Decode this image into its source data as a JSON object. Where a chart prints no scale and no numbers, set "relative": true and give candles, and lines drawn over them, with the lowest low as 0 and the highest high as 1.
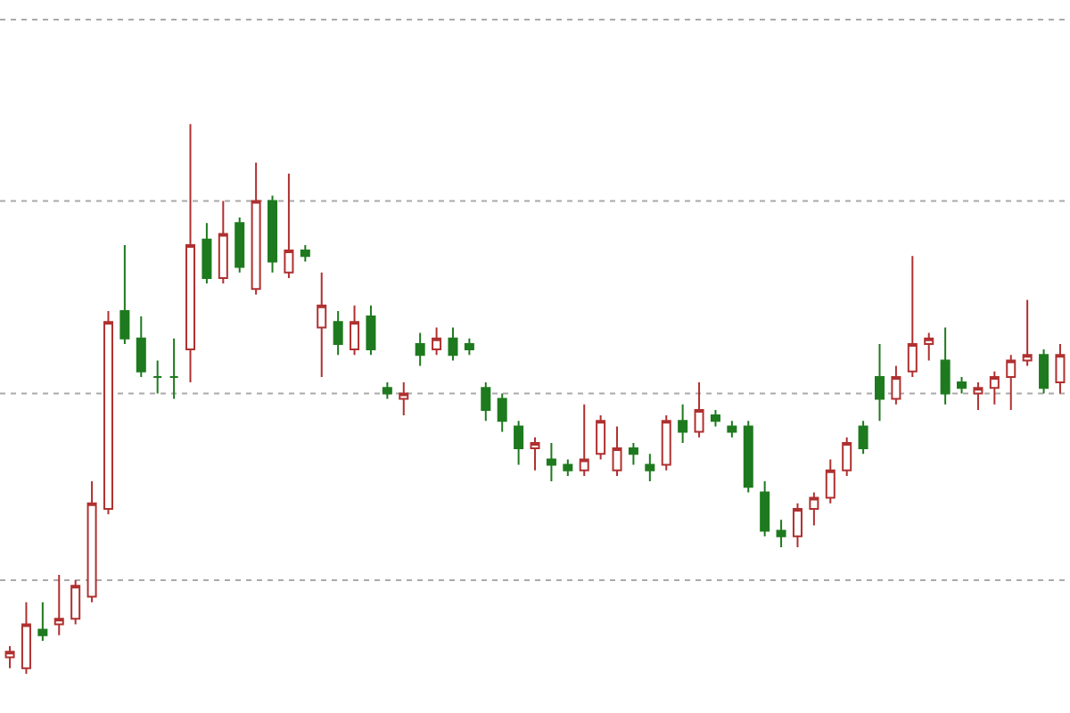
{
  "chart_data": {
    "type": "candlestick",
    "relative": true,
    "categories": [
      null,
      null,
      null,
      null,
      null,
      null,
      null,
      null,
      null,
      null,
      null,
      null,
      null,
      null,
      null,
      null,
      null,
      null,
      null,
      null,
      null,
      null,
      null,
      null,
      null,
      null,
      null,
      null,
      null,
      null,
      null,
      null,
      null,
      null,
      null,
      null,
      null,
      null,
      null,
      null,
      null,
      null,
      null,
      null,
      null,
      null,
      null,
      null,
      null,
      null,
      null,
      null,
      null,
      null,
      null,
      null,
      null,
      null,
      null,
      null,
      null,
      null,
      null,
      null,
      null
    ],
    "series": [
      {
        "ohlc": [
          [
            0.03,
            0.05,
            0.01,
            0.04
          ],
          [
            0.01,
            0.13,
            0,
            0.09
          ],
          [
            0.08,
            0.13,
            0.06,
            0.07
          ],
          [
            0.09,
            0.18,
            0.07,
            0.1
          ],
          [
            0.1,
            0.17,
            0.09,
            0.16
          ],
          [
            0.14,
            0.35,
            0.13,
            0.31
          ],
          [
            0.3,
            0.66,
            0.29,
            0.64
          ],
          [
            0.66,
            0.78,
            0.6,
            0.61
          ],
          [
            0.61,
            0.65,
            0.54,
            0.55
          ],
          [
            0.54,
            0.57,
            0.51,
            0.54
          ],
          [
            0.54,
            0.61,
            0.5,
            0.54
          ],
          [
            0.59,
            1,
            0.53,
            0.78
          ],
          [
            0.79,
            0.82,
            0.71,
            0.72
          ],
          [
            0.72,
            0.86,
            0.71,
            0.8
          ],
          [
            0.82,
            0.83,
            0.73,
            0.74
          ],
          [
            0.7,
            0.93,
            0.69,
            0.86
          ],
          [
            0.86,
            0.87,
            0.73,
            0.75
          ],
          [
            0.73,
            0.91,
            0.72,
            0.77
          ],
          [
            0.77,
            0.78,
            0.75,
            0.76
          ],
          [
            0.63,
            0.73,
            0.54,
            0.67
          ],
          [
            0.64,
            0.66,
            0.58,
            0.6
          ],
          [
            0.59,
            0.67,
            0.58,
            0.64
          ],
          [
            0.65,
            0.67,
            0.58,
            0.59
          ],
          [
            0.52,
            0.53,
            0.5,
            0.51
          ],
          [
            0.5,
            0.53,
            0.47,
            0.51
          ],
          [
            0.6,
            0.62,
            0.56,
            0.58
          ],
          [
            0.59,
            0.63,
            0.58,
            0.61
          ],
          [
            0.61,
            0.63,
            0.57,
            0.58
          ],
          [
            0.6,
            0.61,
            0.58,
            0.59
          ],
          [
            0.52,
            0.53,
            0.46,
            0.48
          ],
          [
            0.5,
            0.51,
            0.44,
            0.46
          ],
          [
            0.45,
            0.46,
            0.38,
            0.41
          ],
          [
            0.41,
            0.43,
            0.37,
            0.42
          ],
          [
            0.39,
            0.42,
            0.35,
            0.38
          ],
          [
            0.38,
            0.39,
            0.36,
            0.37
          ],
          [
            0.37,
            0.49,
            0.36,
            0.39
          ],
          [
            0.4,
            0.47,
            0.39,
            0.46
          ],
          [
            0.37,
            0.45,
            0.36,
            0.41
          ],
          [
            0.41,
            0.42,
            0.38,
            0.4
          ],
          [
            0.38,
            0.4,
            0.35,
            0.37
          ],
          [
            0.38,
            0.47,
            0.37,
            0.46
          ],
          [
            0.46,
            0.49,
            0.42,
            0.44
          ],
          [
            0.44,
            0.53,
            0.43,
            0.48
          ],
          [
            0.47,
            0.48,
            0.45,
            0.46
          ],
          [
            0.45,
            0.46,
            0.43,
            0.44
          ],
          [
            0.45,
            0.46,
            0.33,
            0.34
          ],
          [
            0.33,
            0.35,
            0.25,
            0.26
          ],
          [
            0.26,
            0.28,
            0.23,
            0.25
          ],
          [
            0.25,
            0.31,
            0.23,
            0.3
          ],
          [
            0.3,
            0.33,
            0.27,
            0.32
          ],
          [
            0.32,
            0.39,
            0.31,
            0.37
          ],
          [
            0.37,
            0.43,
            0.36,
            0.42
          ],
          [
            0.45,
            0.46,
            0.4,
            0.41
          ],
          [
            0.54,
            0.6,
            0.46,
            0.5
          ],
          [
            0.5,
            0.56,
            0.49,
            0.54
          ],
          [
            0.55,
            0.76,
            0.54,
            0.6
          ],
          [
            0.6,
            0.62,
            0.57,
            0.61
          ],
          [
            0.57,
            0.63,
            0.49,
            0.51
          ],
          [
            0.53,
            0.54,
            0.51,
            0.52
          ],
          [
            0.51,
            0.53,
            0.48,
            0.52
          ],
          [
            0.52,
            0.55,
            0.49,
            0.54
          ],
          [
            0.54,
            0.58,
            0.48,
            0.57
          ],
          [
            0.57,
            0.68,
            0.56,
            0.58
          ],
          [
            0.58,
            0.59,
            0.51,
            0.52
          ],
          [
            0.53,
            0.6,
            0.51,
            0.58
          ]
        ]
      }
    ],
    "ref_lines": [
      {
        "axis": "y",
        "value": 0.17,
        "color": "#aaaaaa",
        "line_style": "dotted"
      },
      {
        "axis": "y",
        "value": 0.51,
        "color": "#aaaaaa",
        "line_style": "dotted"
      },
      {
        "axis": "y",
        "value": 0.86,
        "color": "#aaaaaa",
        "line_style": "dotted"
      },
      {
        "axis": "y",
        "value": 1.19,
        "color": "#aaaaaa",
        "line_style": "dotted"
      }
    ]
  }
}
